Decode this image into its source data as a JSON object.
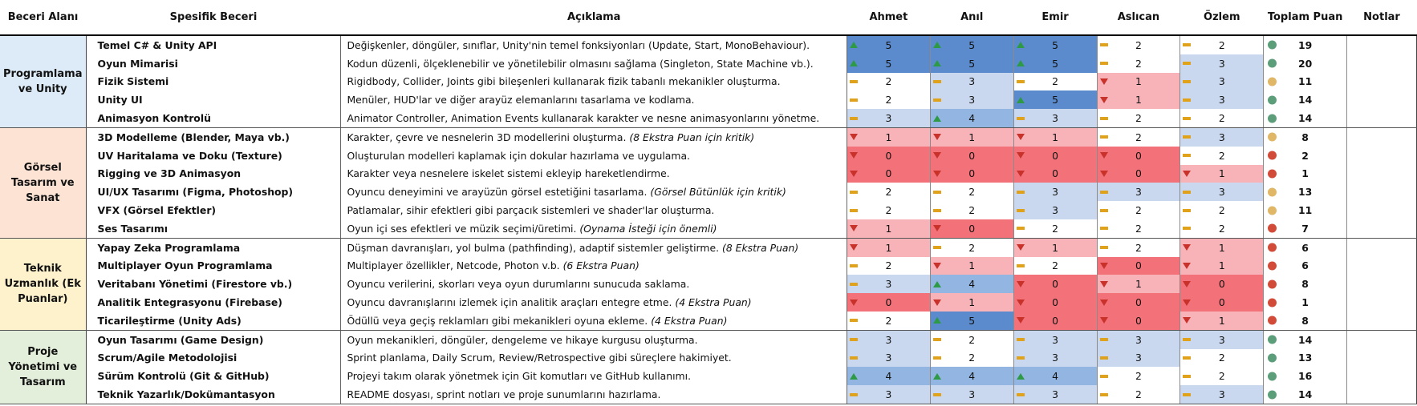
{
  "headers": {
    "area": "Beceri Alanı",
    "skill": "Spesifik Beceri",
    "desc": "Açıklama",
    "people": [
      "Ahmet",
      "Anıl",
      "Emir",
      "Aslıcan",
      "Özlem"
    ],
    "total": "Toplam Puan",
    "notes": "Notlar"
  },
  "colors": {
    "areas": [
      "#dcebf7",
      "#fce3d4",
      "#fef2cc",
      "#e3efda"
    ],
    "score_scale": {
      "0": "#f3727a",
      "1": "#f8b3b8",
      "2": "#ffffff",
      "3": "#c9d8ee",
      "4": "#93b5e1",
      "5": "#5b8bcd"
    },
    "status": {
      "green": "#5b9e79",
      "amber": "#e0b667",
      "red": "#d24a38"
    }
  },
  "groups": [
    {
      "area": "Programlama ve Unity",
      "rows": [
        {
          "skill": "Temel C# & Unity API",
          "desc": "Değişkenler, döngüler, sınıflar, Unity'nin temel fonksiyonları (Update, Start, MonoBehaviour).",
          "note": "",
          "scores": [
            5,
            5,
            5,
            2,
            2
          ],
          "total": "19",
          "status": "green"
        },
        {
          "skill": "Oyun Mimarisi",
          "desc": "Kodun düzenli, ölçeklenebilir ve yönetilebilir olmasını sağlama (Singleton, State Machine vb.).",
          "note": "",
          "scores": [
            5,
            5,
            5,
            2,
            3
          ],
          "total": "20",
          "status": "green"
        },
        {
          "skill": "Fizik Sistemi",
          "desc": "Rigidbody, Collider, Joints gibi bileşenleri kullanarak fizik tabanlı mekanikler oluşturma.",
          "note": "",
          "scores": [
            2,
            3,
            2,
            1,
            3
          ],
          "total": "11",
          "status": "amber"
        },
        {
          "skill": "Unity UI",
          "desc": "Menüler, HUD'lar ve diğer arayüz elemanlarını tasarlama ve kodlama.",
          "note": "",
          "scores": [
            2,
            3,
            5,
            1,
            3
          ],
          "total": "14",
          "status": "green"
        },
        {
          "skill": "Animasyon Kontrolü",
          "desc": "Animator Controller, Animation Events kullanarak karakter ve nesne animasyonlarını yönetme.",
          "note": "",
          "scores": [
            3,
            4,
            3,
            2,
            2
          ],
          "total": "14",
          "status": "green"
        }
      ]
    },
    {
      "area": "Görsel Tasarım ve Sanat",
      "rows": [
        {
          "skill": "3D Modelleme (Blender, Maya vb.)",
          "desc": "Karakter, çevre ve nesnelerin 3D modellerini oluşturma.",
          "note": "(8 Ekstra Puan için kritik)",
          "scores": [
            1,
            1,
            1,
            2,
            3
          ],
          "total": "8",
          "status": "amber"
        },
        {
          "skill": "UV Haritalama ve Doku (Texture)",
          "desc": "Oluşturulan modelleri kaplamak için dokular hazırlama ve uygulama.",
          "note": "",
          "scores": [
            0,
            0,
            0,
            0,
            2
          ],
          "total": "2",
          "status": "red"
        },
        {
          "skill": "Rigging ve 3D Animasyon",
          "desc": "Karakter veya nesnelere iskelet sistemi ekleyip hareketlendirme.",
          "note": "",
          "scores": [
            0,
            0,
            0,
            0,
            1
          ],
          "total": "1",
          "status": "red"
        },
        {
          "skill": "UI/UX Tasarımı (Figma, Photoshop)",
          "desc": "Oyuncu deneyimini ve arayüzün görsel estetiğini tasarlama.",
          "note": "(Görsel Bütünlük için kritik)",
          "scores": [
            2,
            2,
            3,
            3,
            3
          ],
          "total": "13",
          "status": "amber"
        },
        {
          "skill": "VFX (Görsel Efektler)",
          "desc": "Patlamalar, sihir efektleri gibi parçacık sistemleri ve shader'lar oluşturma.",
          "note": "",
          "scores": [
            2,
            2,
            3,
            2,
            2
          ],
          "total": "11",
          "status": "amber"
        },
        {
          "skill": "Ses Tasarımı",
          "desc": "Oyun içi ses efektleri ve müzik seçimi/üretimi.",
          "note": "(Oynama İsteği için önemli)",
          "scores": [
            1,
            0,
            2,
            2,
            2
          ],
          "total": "7",
          "status": "red"
        }
      ]
    },
    {
      "area": "Teknik Uzmanlık (Ek Puanlar)",
      "rows": [
        {
          "skill": "Yapay Zeka Programlama",
          "desc": "Düşman davranışları, yol bulma (pathfinding), adaptif sistemler geliştirme.",
          "note": "(8 Ekstra Puan)",
          "scores": [
            1,
            2,
            1,
            2,
            1
          ],
          "total": "6",
          "status": "red"
        },
        {
          "skill": "Multiplayer Oyun Programlama",
          "desc": "Multiplayer özellikler, Netcode, Photon v.b.",
          "note": "(6 Ekstra Puan)",
          "scores": [
            2,
            1,
            2,
            0,
            1
          ],
          "total": "6",
          "status": "red"
        },
        {
          "skill": "Veritabanı Yönetimi (Firestore vb.)",
          "desc": "Oyuncu verilerini, skorları veya oyun durumlarını sunucuda saklama.",
          "note": "",
          "scores": [
            3,
            4,
            0,
            1,
            0
          ],
          "total": "8",
          "status": "red"
        },
        {
          "skill": "Analitik Entegrasyonu (Firebase)",
          "desc": "Oyuncu davranışlarını izlemek için analitik araçları entegre etme.",
          "note": "(4 Ekstra Puan)",
          "scores": [
            0,
            1,
            0,
            0,
            0
          ],
          "total": "1",
          "status": "red"
        },
        {
          "skill": "Ticarileştirme (Unity Ads)",
          "desc": "Ödüllü veya geçiş reklamları gibi mekanikleri oyuna ekleme.",
          "note": "(4 Ekstra Puan)",
          "scores": [
            2,
            5,
            0,
            0,
            1
          ],
          "total": "8",
          "status": "red"
        }
      ]
    },
    {
      "area": "Proje Yönetimi ve Tasarım",
      "rows": [
        {
          "skill": "Oyun Tasarımı (Game Design)",
          "desc": "Oyun mekanikleri, döngüler, dengeleme ve hikaye kurgusu oluşturma.",
          "note": "",
          "scores": [
            3,
            2,
            3,
            3,
            3
          ],
          "total": "14",
          "status": "green"
        },
        {
          "skill": "Scrum/Agile Metodolojisi",
          "desc": "Sprint planlama, Daily Scrum, Review/Retrospective gibi süreçlere hakimiyet.",
          "note": "",
          "scores": [
            3,
            2,
            3,
            3,
            2
          ],
          "total": "13",
          "status": "green"
        },
        {
          "skill": "Sürüm Kontrolü (Git & GitHub)",
          "desc": "Projeyi takım olarak yönetmek için Git komutları ve GitHub kullanımı.",
          "note": "",
          "scores": [
            4,
            4,
            4,
            2,
            2
          ],
          "total": "16",
          "status": "green"
        },
        {
          "skill": "Teknik Yazarlık/Dokümantasyon",
          "desc": "README dosyası, sprint notları ve proje sunumlarını hazırlama.",
          "note": "",
          "scores": [
            3,
            3,
            3,
            2,
            3
          ],
          "total": "14",
          "status": "green"
        }
      ]
    }
  ]
}
